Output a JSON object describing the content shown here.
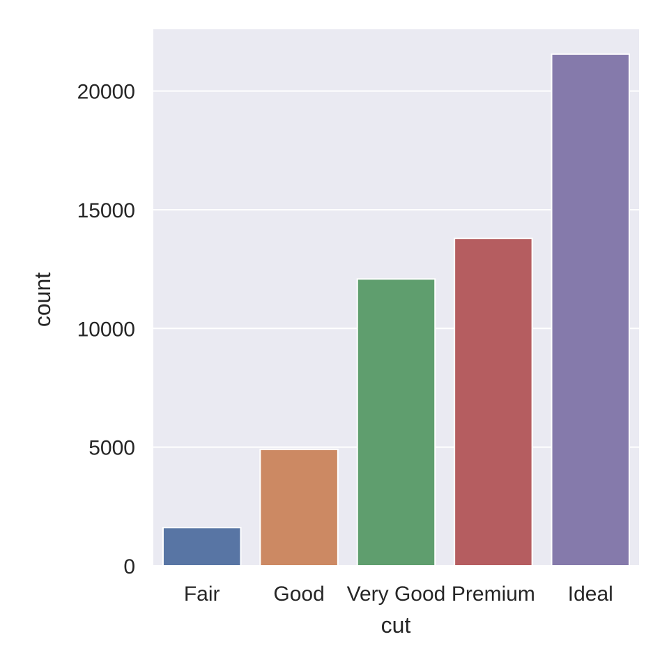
{
  "chart_data": {
    "type": "bar",
    "categories": [
      "Fair",
      "Good",
      "Very Good",
      "Premium",
      "Ideal"
    ],
    "values": [
      1610,
      4906,
      12082,
      13791,
      21551
    ],
    "xlabel": "cut",
    "ylabel": "count",
    "ylim": [
      0,
      22600
    ],
    "yticks": [
      0,
      5000,
      10000,
      15000,
      20000
    ],
    "grid": true,
    "colors": [
      "#5875a4",
      "#cc8963",
      "#5f9e6e",
      "#b55d60",
      "#857aab"
    ],
    "background": "#eaeaf2"
  }
}
